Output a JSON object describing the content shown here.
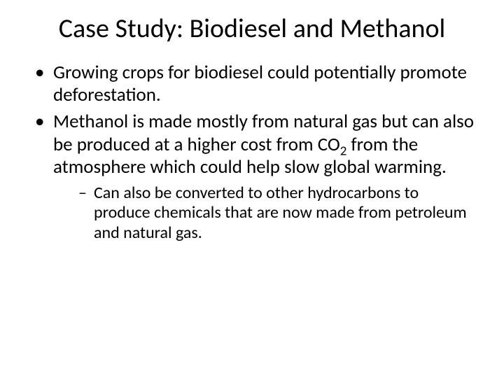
{
  "slide": {
    "title": "Case Study: Biodiesel and Methanol",
    "bullets": [
      {
        "text": "Growing crops for biodiesel could potentially promote deforestation."
      },
      {
        "text_pre": "Methanol is made mostly from natural gas but can also be produced at a higher cost from CO",
        "sub": "2",
        "text_post": " from the atmosphere which could help slow global warming.",
        "children": [
          {
            "text": "Can also be converted to other hydrocarbons to produce chemicals that are now made from petroleum and natural gas."
          }
        ]
      }
    ],
    "colors": {
      "background": "#ffffff",
      "text": "#000000"
    },
    "typography": {
      "title_fontsize": 38,
      "bullet_fontsize": 27,
      "sub_bullet_fontsize": 24,
      "font_family": "Calibri"
    }
  }
}
